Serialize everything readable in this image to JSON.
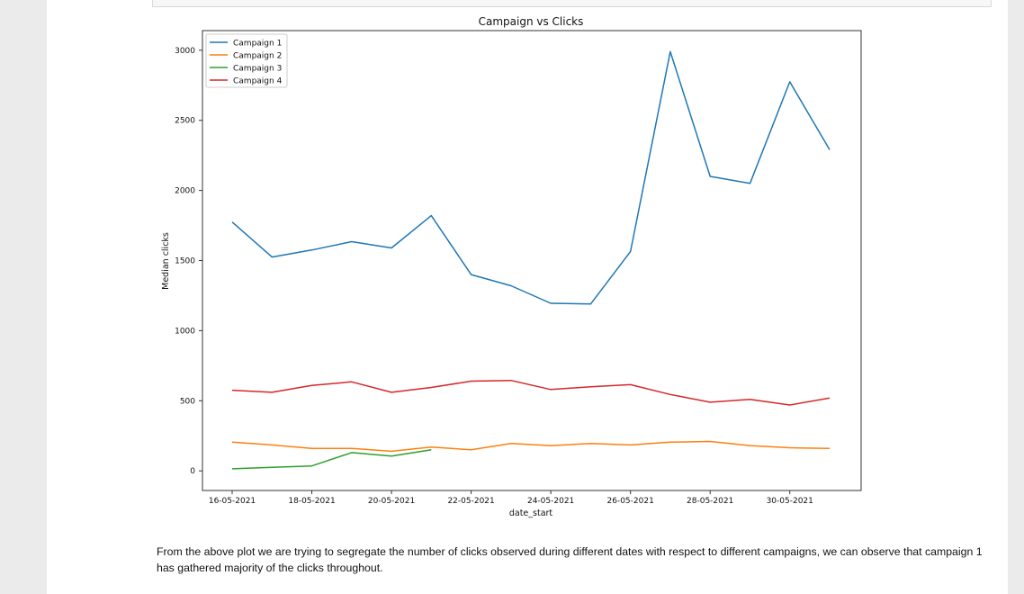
{
  "chart_data": {
    "type": "line",
    "title": "Campaign vs Clicks",
    "xlabel": "date_start",
    "ylabel": "Median clicks",
    "x": [
      "16-05-2021",
      "17-05-2021",
      "18-05-2021",
      "19-05-2021",
      "20-05-2021",
      "21-05-2021",
      "22-05-2021",
      "23-05-2021",
      "24-05-2021",
      "25-05-2021",
      "26-05-2021",
      "27-05-2021",
      "28-05-2021",
      "29-05-2021",
      "30-05-2021",
      "31-05-2021"
    ],
    "x_tick_labels": [
      "16-05-2021",
      "18-05-2021",
      "20-05-2021",
      "22-05-2021",
      "24-05-2021",
      "26-05-2021",
      "28-05-2021",
      "30-05-2021"
    ],
    "y_ticks": [
      0,
      500,
      1000,
      1500,
      2000,
      2500,
      3000
    ],
    "ylim": [
      -140,
      3140
    ],
    "grid": false,
    "legend_position": "top-left",
    "series": [
      {
        "name": "Campaign 1",
        "color": "#1f77b4",
        "values": [
          1775,
          1525,
          1575,
          1635,
          1590,
          1820,
          1400,
          1320,
          1195,
          1190,
          1565,
          2990,
          2100,
          2050,
          2775,
          2290
        ]
      },
      {
        "name": "Campaign 2",
        "color": "#ff7f0e",
        "values": [
          205,
          185,
          160,
          160,
          140,
          170,
          150,
          195,
          180,
          195,
          185,
          205,
          210,
          180,
          165,
          160
        ]
      },
      {
        "name": "Campaign 3",
        "color": "#2ca02c",
        "values": [
          15,
          25,
          35,
          130,
          105,
          150,
          null,
          null,
          null,
          null,
          null,
          null,
          null,
          null,
          null,
          null
        ]
      },
      {
        "name": "Campaign 4",
        "color": "#d62728",
        "values": [
          575,
          560,
          610,
          635,
          560,
          595,
          640,
          645,
          580,
          600,
          615,
          545,
          490,
          510,
          470,
          520
        ]
      }
    ]
  },
  "description": "From the above plot we are trying to segregate the number of clicks observed during different dates with respect to different campaigns, we can observe that campaign 1 has gathered majority of the clicks throughout."
}
